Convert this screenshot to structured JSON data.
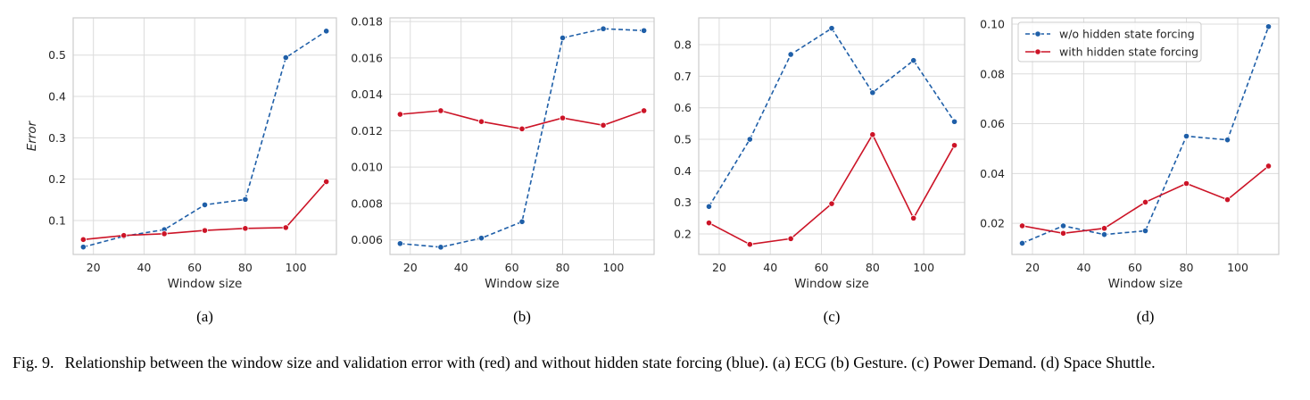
{
  "figure": {
    "caption_label": "Fig. 9.",
    "caption_text": "Relationship between the window size and validation error with (red) and without hidden state forcing (blue). (a) ECG (b) Gesture. (c) Power Demand. (d) Space Shuttle."
  },
  "colors": {
    "blue": "#1f5fa8",
    "red": "#cc1427",
    "grid": "#dcdcdc",
    "frame": "#cccccc"
  },
  "legend": {
    "placement": "upper-left (panel d)"
  },
  "chart_data": [
    {
      "type": "line",
      "panel_label": "(a)",
      "xlabel": "Window size",
      "ylabel": "Error",
      "xlim": [
        12,
        116
      ],
      "ylim": [
        0.018,
        0.59
      ],
      "xticks": [
        20,
        40,
        60,
        80,
        100
      ],
      "yticks": [
        0.1,
        0.2,
        0.3,
        0.4,
        0.5
      ],
      "ytick_labels": [
        "0.1",
        "0.2",
        "0.3",
        "0.4",
        "0.5"
      ],
      "grid": true,
      "x": [
        16,
        32,
        48,
        64,
        80,
        96,
        112
      ],
      "series": [
        {
          "name": "w/o hidden state forcing",
          "color": "#1f5fa8",
          "dashed": true,
          "values": [
            0.036,
            0.062,
            0.078,
            0.138,
            0.151,
            0.494,
            0.558
          ]
        },
        {
          "name": "with hidden state forcing",
          "color": "#cc1427",
          "dashed": false,
          "values": [
            0.054,
            0.064,
            0.068,
            0.076,
            0.081,
            0.083,
            0.194
          ]
        }
      ]
    },
    {
      "type": "line",
      "panel_label": "(b)",
      "xlabel": "Window size",
      "ylabel": "",
      "xlim": [
        12,
        116
      ],
      "ylim": [
        0.0052,
        0.0182
      ],
      "xticks": [
        20,
        40,
        60,
        80,
        100
      ],
      "yticks": [
        0.006,
        0.008,
        0.01,
        0.012,
        0.014,
        0.016,
        0.018
      ],
      "ytick_labels": [
        "0.006",
        "0.008",
        "0.010",
        "0.012",
        "0.014",
        "0.016",
        "0.018"
      ],
      "grid": true,
      "x": [
        16,
        32,
        48,
        64,
        80,
        96,
        112
      ],
      "series": [
        {
          "name": "w/o hidden state forcing",
          "color": "#1f5fa8",
          "dashed": true,
          "values": [
            0.0058,
            0.0056,
            0.0061,
            0.007,
            0.0171,
            0.0176,
            0.0175
          ]
        },
        {
          "name": "with hidden state forcing",
          "color": "#cc1427",
          "dashed": false,
          "values": [
            0.0129,
            0.0131,
            0.0125,
            0.0121,
            0.0127,
            0.0123,
            0.0131
          ]
        }
      ]
    },
    {
      "type": "line",
      "panel_label": "(c)",
      "xlabel": "Window size",
      "ylabel": "",
      "xlim": [
        12,
        116
      ],
      "ylim": [
        0.135,
        0.885
      ],
      "xticks": [
        20,
        40,
        60,
        80,
        100
      ],
      "yticks": [
        0.2,
        0.3,
        0.4,
        0.5,
        0.6,
        0.7,
        0.8
      ],
      "ytick_labels": [
        "0.2",
        "0.3",
        "0.4",
        "0.5",
        "0.6",
        "0.7",
        "0.8"
      ],
      "grid": true,
      "x": [
        16,
        32,
        48,
        64,
        80,
        96,
        112
      ],
      "series": [
        {
          "name": "w/o hidden state forcing",
          "color": "#1f5fa8",
          "dashed": true,
          "values": [
            0.287,
            0.5,
            0.769,
            0.852,
            0.648,
            0.75,
            0.556
          ]
        },
        {
          "name": "with hidden state forcing",
          "color": "#cc1427",
          "dashed": false,
          "values": [
            0.235,
            0.167,
            0.185,
            0.296,
            0.515,
            0.25,
            0.481
          ]
        }
      ]
    },
    {
      "type": "line",
      "panel_label": "(d)",
      "xlabel": "Window size",
      "ylabel": "",
      "xlim": [
        12,
        116
      ],
      "ylim": [
        0.0075,
        0.1025
      ],
      "xticks": [
        20,
        40,
        60,
        80,
        100
      ],
      "yticks": [
        0.02,
        0.04,
        0.06,
        0.08,
        0.1
      ],
      "ytick_labels": [
        "0.02",
        "0.04",
        "0.06",
        "0.08",
        "0.10"
      ],
      "grid": true,
      "x": [
        16,
        32,
        48,
        64,
        80,
        96,
        112
      ],
      "legend_entries": [
        "w/o hidden state forcing",
        "with hidden state forcing"
      ],
      "series": [
        {
          "name": "w/o hidden state forcing",
          "color": "#1f5fa8",
          "dashed": true,
          "values": [
            0.012,
            0.019,
            0.0155,
            0.017,
            0.055,
            0.0535,
            0.099
          ]
        },
        {
          "name": "with hidden state forcing",
          "color": "#cc1427",
          "dashed": false,
          "values": [
            0.019,
            0.016,
            0.018,
            0.0285,
            0.036,
            0.0295,
            0.043
          ]
        }
      ]
    }
  ]
}
